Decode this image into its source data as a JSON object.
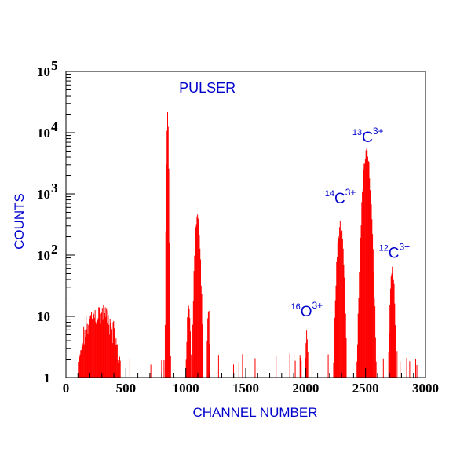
{
  "chart_data": {
    "type": "bar",
    "xlabel": "CHANNEL NUMBER",
    "ylabel": "COUNTS",
    "xlim": [
      0,
      3000
    ],
    "ylim": [
      1,
      100000
    ],
    "yscale": "log",
    "grid": false,
    "bar_color": "#ff0000",
    "axis_color": "#000000",
    "text_color": "#0000cc",
    "x_ticks": [
      {
        "value": 0,
        "label": "0"
      },
      {
        "value": 500,
        "label": "500"
      },
      {
        "value": 1000,
        "label": "1000"
      },
      {
        "value": 1500,
        "label": "1500"
      },
      {
        "value": 2000,
        "label": "2000"
      },
      {
        "value": 2500,
        "label": "2500"
      },
      {
        "value": 3000,
        "label": "3000"
      }
    ],
    "y_ticks": [
      {
        "value": 1,
        "base": "1",
        "exp": ""
      },
      {
        "value": 10,
        "base": "10",
        "exp": ""
      },
      {
        "value": 100,
        "base": "10",
        "exp": "2"
      },
      {
        "value": 1000,
        "base": "10",
        "exp": "3"
      },
      {
        "value": 10000,
        "base": "10",
        "exp": "4"
      },
      {
        "value": 100000,
        "base": "10",
        "exp": "5"
      }
    ],
    "annotations": [
      {
        "name": "pulser",
        "text": "PULSER",
        "sup_left": "",
        "sup_right": "",
        "x": 1180,
        "y": 45000
      },
      {
        "name": "13c3plus",
        "text": "C",
        "sup_left": "13",
        "sup_right": "3+",
        "x": 2520,
        "y": 7000
      },
      {
        "name": "14c3plus",
        "text": "C",
        "sup_left": "14",
        "sup_right": "3+",
        "x": 2290,
        "y": 700
      },
      {
        "name": "12c3plus",
        "text": "C",
        "sup_left": "12",
        "sup_right": "3+",
        "x": 2740,
        "y": 90
      },
      {
        "name": "16o3plus",
        "text": "O",
        "sup_left": "16",
        "sup_right": "3+",
        "x": 2010,
        "y": 10
      }
    ],
    "peaks": [
      {
        "center": 845,
        "height": 18000,
        "sigma": 5
      },
      {
        "center": 1095,
        "height": 420,
        "sigma": 14
      },
      {
        "center": 1020,
        "height": 15,
        "sigma": 10
      },
      {
        "center": 1185,
        "height": 12,
        "sigma": 7
      },
      {
        "center": 2285,
        "height": 300,
        "sigma": 17
      },
      {
        "center": 2505,
        "height": 4500,
        "sigma": 20
      },
      {
        "center": 2720,
        "height": 62,
        "sigma": 12
      },
      {
        "center": 2005,
        "height": 6,
        "sigma": 7
      }
    ],
    "low_channel_cluster": {
      "start": 100,
      "end": 450,
      "max": 16,
      "min_count": 2
    }
  }
}
